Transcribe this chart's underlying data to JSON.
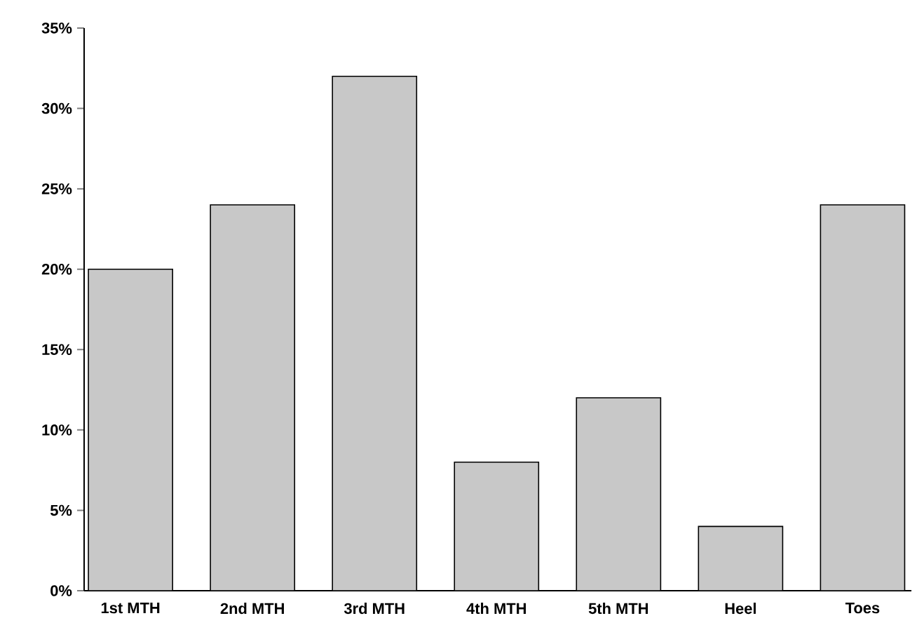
{
  "chart_data": {
    "type": "bar",
    "categories": [
      "1st MTH",
      "2nd MTH",
      "3rd MTH",
      "4th MTH",
      "5th MTH",
      "Heel",
      "Toes"
    ],
    "values": [
      20,
      24,
      32,
      8,
      12,
      4,
      24
    ],
    "color": "#c8c8c8",
    "ylim": [
      0,
      35
    ],
    "yticks": [
      {
        "value": 0,
        "label": "0%"
      },
      {
        "value": 5,
        "label": "5%"
      },
      {
        "value": 10,
        "label": "10%"
      },
      {
        "value": 15,
        "label": "15%"
      },
      {
        "value": 20,
        "label": "20%"
      },
      {
        "value": 25,
        "label": "25%"
      },
      {
        "value": 30,
        "label": "30%"
      },
      {
        "value": 35,
        "label": "35%"
      }
    ],
    "grid": false
  }
}
